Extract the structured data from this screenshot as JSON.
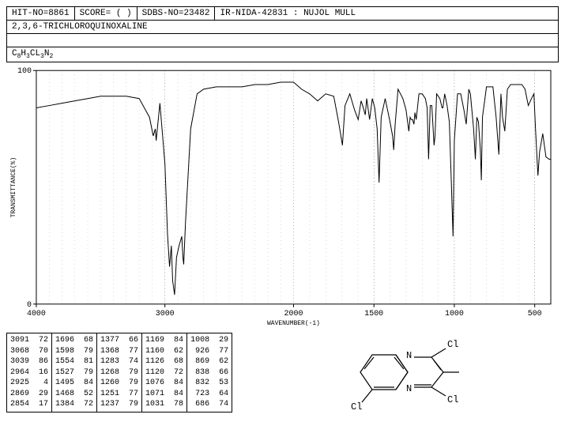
{
  "header": {
    "hit_no": "HIT-NO=8861",
    "score": "SCORE=  (  )",
    "sdbs_no": "SDBS-NO=23482",
    "ir_info": "IR-NIDA-42831 : NUJOL MULL"
  },
  "compound_name": "2,3,6-TRICHLOROQUINOXALINE",
  "formula_html": "C<sub>8</sub>H<sub>3</sub>CL<sub>3</sub>N<sub>2</sub>",
  "chart": {
    "type": "line",
    "xlabel": "WAVENUMBER(-1)",
    "ylabel": "TRANSMITTANCE(%)",
    "xlim": [
      4000,
      400
    ],
    "ylim": [
      0,
      100
    ],
    "xticks": [
      4000,
      3000,
      2000,
      1500,
      1000,
      500
    ],
    "yticks": [
      0,
      100
    ],
    "line_color": "#000000",
    "grid_color": "#000000",
    "background": "#ffffff",
    "points": [
      [
        4000,
        84
      ],
      [
        3900,
        85
      ],
      [
        3800,
        86
      ],
      [
        3700,
        87
      ],
      [
        3600,
        88
      ],
      [
        3500,
        89
      ],
      [
        3400,
        89
      ],
      [
        3300,
        89
      ],
      [
        3200,
        88
      ],
      [
        3120,
        80
      ],
      [
        3091,
        72
      ],
      [
        3075,
        75
      ],
      [
        3068,
        70
      ],
      [
        3050,
        80
      ],
      [
        3039,
        86
      ],
      [
        3000,
        60
      ],
      [
        2980,
        30
      ],
      [
        2964,
        16
      ],
      [
        2950,
        25
      ],
      [
        2940,
        10
      ],
      [
        2925,
        4
      ],
      [
        2910,
        20
      ],
      [
        2890,
        25
      ],
      [
        2869,
        29
      ],
      [
        2860,
        20
      ],
      [
        2854,
        17
      ],
      [
        2840,
        35
      ],
      [
        2800,
        75
      ],
      [
        2750,
        90
      ],
      [
        2700,
        92
      ],
      [
        2600,
        93
      ],
      [
        2500,
        93
      ],
      [
        2400,
        93
      ],
      [
        2300,
        94
      ],
      [
        2200,
        94
      ],
      [
        2100,
        95
      ],
      [
        2000,
        95
      ],
      [
        1950,
        92
      ],
      [
        1900,
        90
      ],
      [
        1850,
        87
      ],
      [
        1800,
        90
      ],
      [
        1750,
        89
      ],
      [
        1720,
        78
      ],
      [
        1696,
        68
      ],
      [
        1680,
        85
      ],
      [
        1650,
        90
      ],
      [
        1620,
        83
      ],
      [
        1598,
        79
      ],
      [
        1580,
        87
      ],
      [
        1570,
        85
      ],
      [
        1554,
        81
      ],
      [
        1545,
        88
      ],
      [
        1527,
        79
      ],
      [
        1510,
        88
      ],
      [
        1495,
        84
      ],
      [
        1480,
        75
      ],
      [
        1468,
        52
      ],
      [
        1455,
        80
      ],
      [
        1430,
        88
      ],
      [
        1400,
        78
      ],
      [
        1384,
        72
      ],
      [
        1377,
        66
      ],
      [
        1368,
        77
      ],
      [
        1350,
        92
      ],
      [
        1320,
        88
      ],
      [
        1300,
        83
      ],
      [
        1283,
        74
      ],
      [
        1275,
        80
      ],
      [
        1268,
        79
      ],
      [
        1260,
        79
      ],
      [
        1251,
        77
      ],
      [
        1245,
        82
      ],
      [
        1237,
        79
      ],
      [
        1220,
        90
      ],
      [
        1200,
        90
      ],
      [
        1180,
        88
      ],
      [
        1169,
        84
      ],
      [
        1160,
        62
      ],
      [
        1150,
        85
      ],
      [
        1140,
        85
      ],
      [
        1126,
        68
      ],
      [
        1120,
        72
      ],
      [
        1110,
        90
      ],
      [
        1090,
        88
      ],
      [
        1076,
        84
      ],
      [
        1071,
        84
      ],
      [
        1060,
        90
      ],
      [
        1045,
        85
      ],
      [
        1031,
        78
      ],
      [
        1020,
        55
      ],
      [
        1008,
        29
      ],
      [
        1000,
        70
      ],
      [
        980,
        90
      ],
      [
        960,
        90
      ],
      [
        940,
        83
      ],
      [
        926,
        77
      ],
      [
        910,
        92
      ],
      [
        900,
        90
      ],
      [
        880,
        75
      ],
      [
        869,
        62
      ],
      [
        860,
        80
      ],
      [
        850,
        78
      ],
      [
        838,
        66
      ],
      [
        832,
        53
      ],
      [
        825,
        80
      ],
      [
        800,
        93
      ],
      [
        780,
        93
      ],
      [
        760,
        93
      ],
      [
        740,
        80
      ],
      [
        723,
        64
      ],
      [
        710,
        90
      ],
      [
        700,
        80
      ],
      [
        686,
        74
      ],
      [
        670,
        92
      ],
      [
        650,
        94
      ],
      [
        620,
        94
      ],
      [
        600,
        94
      ],
      [
        580,
        94
      ],
      [
        560,
        92
      ],
      [
        540,
        85
      ],
      [
        520,
        88
      ],
      [
        505,
        90
      ],
      [
        495,
        75
      ],
      [
        480,
        55
      ],
      [
        470,
        65
      ],
      [
        450,
        73
      ],
      [
        430,
        63
      ],
      [
        410,
        62
      ],
      [
        400,
        62
      ]
    ]
  },
  "peak_table": [
    [
      [
        3091,
        72
      ],
      [
        3068,
        70
      ],
      [
        3039,
        86
      ],
      [
        2964,
        16
      ],
      [
        2925,
        4
      ],
      [
        2869,
        29
      ],
      [
        2854,
        17
      ]
    ],
    [
      [
        1696,
        68
      ],
      [
        1598,
        79
      ],
      [
        1554,
        81
      ],
      [
        1527,
        79
      ],
      [
        1495,
        84
      ],
      [
        1468,
        52
      ],
      [
        1384,
        72
      ]
    ],
    [
      [
        1377,
        66
      ],
      [
        1368,
        77
      ],
      [
        1283,
        74
      ],
      [
        1268,
        79
      ],
      [
        1260,
        79
      ],
      [
        1251,
        77
      ],
      [
        1237,
        79
      ]
    ],
    [
      [
        1169,
        84
      ],
      [
        1160,
        62
      ],
      [
        1126,
        68
      ],
      [
        1120,
        72
      ],
      [
        1076,
        84
      ],
      [
        1071,
        84
      ],
      [
        1031,
        78
      ]
    ],
    [
      [
        1008,
        29
      ],
      [
        926,
        77
      ],
      [
        869,
        62
      ],
      [
        838,
        66
      ],
      [
        832,
        53
      ],
      [
        723,
        64
      ],
      [
        686,
        74
      ]
    ]
  ],
  "molecule": {
    "atoms": [
      "N",
      "N",
      "Cl",
      "Cl",
      "Cl"
    ]
  }
}
